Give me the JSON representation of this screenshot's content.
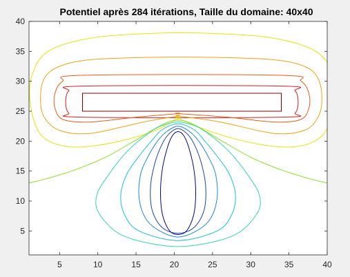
{
  "chart_data": {
    "type": "contour",
    "title": "Potentiel après 284 itérations, Taille du domaine: 40x40",
    "xlim": [
      1,
      40
    ],
    "ylim": [
      1,
      40
    ],
    "x_ticks": [
      5,
      10,
      15,
      20,
      25,
      30,
      35,
      40
    ],
    "y_ticks": [
      5,
      10,
      15,
      20,
      25,
      30,
      35,
      40
    ],
    "x_tick_labels": [
      "5",
      "10",
      "15",
      "20",
      "25",
      "30",
      "35",
      "40"
    ],
    "y_tick_labels": [
      "5",
      "10",
      "15",
      "20",
      "25",
      "30",
      "35",
      "40"
    ],
    "grid": false,
    "colormap": "jet",
    "background": "#ffffff",
    "figure_background": "#f0f0f0",
    "electrodes": [
      {
        "shape": "rectangle",
        "x_range": [
          8,
          34
        ],
        "y_range": [
          25,
          28
        ],
        "color": "#800000"
      }
    ],
    "contours": [
      {
        "color": "#8b0000",
        "points": [
          [
            8,
            25
          ],
          [
            34,
            25
          ],
          [
            34,
            28
          ],
          [
            8,
            28
          ]
        ],
        "closed": true
      },
      {
        "color": "#d81b1b",
        "points": [
          [
            8,
            24
          ],
          [
            34,
            24
          ],
          [
            35.8,
            24.7
          ],
          [
            36.2,
            26.5
          ],
          [
            35.8,
            28.4
          ],
          [
            34,
            29.2
          ],
          [
            8,
            29.2
          ],
          [
            6.2,
            28.4
          ],
          [
            5.8,
            26.5
          ],
          [
            6.2,
            24.7
          ]
        ],
        "closed": true
      },
      {
        "color": "#f05a16",
        "points": [
          [
            20.5,
            24.6
          ],
          [
            27,
            24
          ],
          [
            33,
            23.2
          ],
          [
            36.5,
            23.6
          ],
          [
            37.6,
            25.5
          ],
          [
            37.6,
            28
          ],
          [
            36.6,
            30
          ],
          [
            34,
            31
          ],
          [
            8,
            31
          ],
          [
            5.4,
            30
          ],
          [
            4.4,
            28
          ],
          [
            4.4,
            25.5
          ],
          [
            5.5,
            23.6
          ],
          [
            9,
            23.2
          ],
          [
            15,
            24
          ],
          [
            20.5,
            24.6
          ]
        ],
        "closed": true
      },
      {
        "color": "#f2a20c",
        "points": [
          [
            20.5,
            24.2
          ],
          [
            26,
            23.2
          ],
          [
            33,
            21.3
          ],
          [
            37,
            21.8
          ],
          [
            38.8,
            24
          ],
          [
            39.3,
            27
          ],
          [
            38.8,
            30.5
          ],
          [
            37,
            32.5
          ],
          [
            33,
            33.6
          ],
          [
            25,
            34
          ],
          [
            17,
            34
          ],
          [
            9,
            33.6
          ],
          [
            5,
            32.5
          ],
          [
            3,
            30.5
          ],
          [
            2.5,
            27
          ],
          [
            3,
            24
          ],
          [
            5,
            21.8
          ],
          [
            9,
            21.3
          ],
          [
            16,
            23.2
          ],
          [
            20.5,
            24.2
          ]
        ],
        "closed": true
      },
      {
        "color": "#e8e400",
        "points": [
          [
            20.5,
            23.8
          ],
          [
            25,
            21.5
          ],
          [
            31,
            19.5
          ],
          [
            36,
            19.1
          ],
          [
            39.4,
            21
          ],
          [
            41,
            26
          ],
          [
            40.8,
            31
          ],
          [
            38.5,
            35
          ],
          [
            33,
            37.2
          ],
          [
            25,
            38
          ],
          [
            17,
            38
          ],
          [
            9,
            37.2
          ],
          [
            3.5,
            35
          ],
          [
            1.4,
            31
          ],
          [
            1.2,
            26
          ],
          [
            2.6,
            21
          ],
          [
            6,
            19.1
          ],
          [
            11,
            19.5
          ],
          [
            17,
            21.5
          ],
          [
            20.5,
            23.8
          ]
        ],
        "closed": true
      },
      {
        "color": "#84e21c",
        "points": [
          [
            1,
            13
          ],
          [
            3.5,
            13.8
          ],
          [
            7,
            15.2
          ],
          [
            11,
            17.3
          ],
          [
            15,
            20.2
          ],
          [
            18.5,
            22.8
          ],
          [
            20.5,
            23.5
          ],
          [
            22.5,
            22.8
          ],
          [
            26,
            20.2
          ],
          [
            30,
            17.3
          ],
          [
            34,
            15.2
          ],
          [
            37.5,
            13.8
          ],
          [
            40,
            13
          ]
        ],
        "closed": false
      },
      {
        "color": "#2fd9a8",
        "points": [
          [
            20.5,
            23.2
          ],
          [
            23,
            22.4
          ],
          [
            25,
            20.7
          ],
          [
            27,
            18.5
          ],
          [
            28.5,
            16.3
          ],
          [
            29.8,
            14
          ],
          [
            31,
            11.5
          ],
          [
            31.2,
            9
          ],
          [
            30,
            6.5
          ],
          [
            28,
            4.4
          ],
          [
            24.5,
            3
          ],
          [
            20.5,
            2.4
          ],
          [
            16.5,
            3
          ],
          [
            13,
            4.4
          ],
          [
            11,
            6.5
          ],
          [
            9.8,
            9
          ],
          [
            10,
            11.5
          ],
          [
            11.2,
            14
          ],
          [
            12.5,
            16.3
          ],
          [
            14,
            18.5
          ],
          [
            16,
            20.7
          ],
          [
            18,
            22.4
          ]
        ],
        "closed": true
      },
      {
        "color": "#16c0dd",
        "points": [
          [
            20.5,
            22.9
          ],
          [
            22.6,
            21.9
          ],
          [
            24,
            20
          ],
          [
            25.6,
            17.5
          ],
          [
            27.2,
            14.5
          ],
          [
            28,
            11
          ],
          [
            27.5,
            7.7
          ],
          [
            25.6,
            5
          ],
          [
            20.5,
            3.4
          ],
          [
            15.4,
            5
          ],
          [
            13.5,
            7.7
          ],
          [
            13,
            11
          ],
          [
            13.8,
            14.5
          ],
          [
            15.4,
            17.5
          ],
          [
            17,
            20
          ],
          [
            18.4,
            21.9
          ]
        ],
        "closed": true
      },
      {
        "color": "#1d86e6",
        "points": [
          [
            20.5,
            22.5
          ],
          [
            22,
            21.6
          ],
          [
            23.2,
            20
          ],
          [
            24.4,
            17.5
          ],
          [
            25.4,
            14.5
          ],
          [
            25.6,
            10.5
          ],
          [
            24.7,
            7
          ],
          [
            22.9,
            5
          ],
          [
            20.5,
            4
          ],
          [
            18.1,
            5
          ],
          [
            16.3,
            7
          ],
          [
            15.4,
            10.5
          ],
          [
            15.6,
            14.5
          ],
          [
            16.6,
            17.5
          ],
          [
            17.8,
            20
          ],
          [
            19,
            21.6
          ]
        ],
        "closed": true
      },
      {
        "color": "#1a3fc8",
        "points": [
          [
            20.5,
            22.1
          ],
          [
            21.7,
            21.2
          ],
          [
            22.6,
            19.5
          ],
          [
            23.5,
            16.5
          ],
          [
            24.1,
            12.5
          ],
          [
            23.9,
            8.5
          ],
          [
            22.6,
            5.6
          ],
          [
            20.5,
            4.6
          ],
          [
            18.4,
            5.6
          ],
          [
            17.1,
            8.5
          ],
          [
            16.9,
            12.5
          ],
          [
            17.5,
            16.5
          ],
          [
            18.4,
            19.5
          ],
          [
            19.3,
            21.2
          ]
        ],
        "closed": true
      },
      {
        "color": "#00008f",
        "points": [
          [
            20.5,
            21.6
          ],
          [
            21.3,
            20.8
          ],
          [
            22,
            18.5
          ],
          [
            22.6,
            15
          ],
          [
            22.8,
            11
          ],
          [
            22.5,
            7.5
          ],
          [
            21.6,
            5
          ],
          [
            20.5,
            4.4
          ],
          [
            19.4,
            5
          ],
          [
            18.5,
            7.5
          ],
          [
            18.2,
            11
          ],
          [
            18.4,
            15
          ],
          [
            19,
            18.5
          ],
          [
            19.7,
            20.8
          ]
        ],
        "closed": true
      }
    ]
  }
}
